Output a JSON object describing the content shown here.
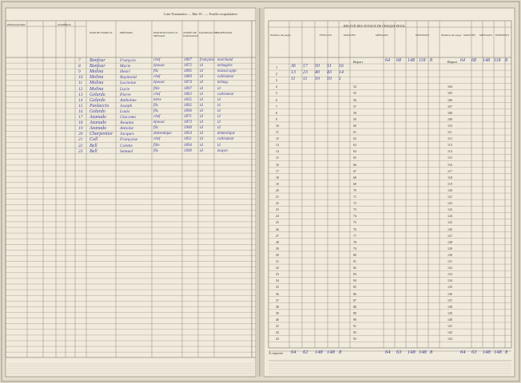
{
  "header": {
    "left_page": "Liste Nominative — Mai 19... — Feuille recapitulative",
    "right_page": "RELEVÉ DES TOTAUX DE CHAQUE FEUIL"
  },
  "left_columns": [
    "DÉSIGNATION",
    "NUMÉROS",
    "NOM DE FAMILLE",
    "PRÉNOMS",
    "POSITION DANS LE MÉNAGE",
    "ANNÉE DE NAISSANCE",
    "NATIONALITÉ",
    "PROFESSION"
  ],
  "right_columns": [
    "Numéros des pages",
    "FEUILLES",
    "MAISONS",
    "MÉNAGES",
    "INDIVIDUS",
    "Numéros des pages",
    "MAISONS",
    "MÉNAGES",
    "INDIVIDUS"
  ],
  "entries": [
    {
      "no": "7",
      "name": "Bonfour",
      "first": "François",
      "pos": "chef",
      "year": "1867",
      "nat": "française",
      "prof": "marchand"
    },
    {
      "no": "8",
      "name": "Bonfour",
      "first": "Marie",
      "pos": "épouse",
      "year": "1872",
      "nat": "id",
      "prof": "ménagère"
    },
    {
      "no": "9",
      "name": "Molina",
      "first": "Henri",
      "pos": "fils",
      "year": "1895",
      "nat": "id",
      "prof": "maison appr."
    },
    {
      "no": "10",
      "name": "Molina",
      "first": "Raymond",
      "pos": "chef",
      "year": "1869",
      "nat": "id",
      "prof": "cultivateur"
    },
    {
      "no": "11",
      "name": "Molina",
      "first": "Lucienne",
      "pos": "épouse",
      "year": "1874",
      "nat": "id",
      "prof": "ménag."
    },
    {
      "no": "12",
      "name": "Molina",
      "first": "Lucie",
      "pos": "fille",
      "year": "1897",
      "nat": "id",
      "prof": "id"
    },
    {
      "no": "13",
      "name": "Gelardo",
      "first": "Pierre",
      "pos": "chef",
      "year": "1863",
      "nat": "id",
      "prof": "cultivateur"
    },
    {
      "no": "14",
      "name": "Gelardo",
      "first": "Anthelme",
      "pos": "mère",
      "year": "1835",
      "nat": "id",
      "prof": "id"
    },
    {
      "no": "15",
      "name": "Paolaccio",
      "first": "Joseph",
      "pos": "fils",
      "year": "1892",
      "nat": "id",
      "prof": "id"
    },
    {
      "no": "16",
      "name": "Gelardo",
      "first": "Louis",
      "pos": "fils",
      "year": "1896",
      "nat": "id",
      "prof": "id"
    },
    {
      "no": "17",
      "name": "Azanado",
      "first": "Giacomo",
      "pos": "chef",
      "year": "1871",
      "nat": "id",
      "prof": "id"
    },
    {
      "no": "18",
      "name": "Azanado",
      "first": "Assunta",
      "pos": "épouse",
      "year": "1873",
      "nat": "id",
      "prof": "id"
    },
    {
      "no": "19",
      "name": "Azanado",
      "first": "Antoine",
      "pos": "fils",
      "year": "1900",
      "nat": "id",
      "prof": "id"
    },
    {
      "no": "20",
      "name": "Charpentier",
      "first": "Jacques",
      "pos": "domestique",
      "year": "1854",
      "nat": "id",
      "prof": "domestique"
    },
    {
      "no": "21",
      "name": "Coll",
      "first": "Françoise",
      "pos": "chef",
      "year": "1851",
      "nat": "id",
      "prof": "cultivateur"
    },
    {
      "no": "22",
      "name": "Bell",
      "first": "Colette",
      "pos": "fille",
      "year": "1894",
      "nat": "id",
      "prof": "id"
    },
    {
      "no": "23",
      "name": "Bell",
      "first": "Samuel",
      "pos": "fils",
      "year": "1900",
      "nat": "id",
      "prof": "maçon"
    }
  ],
  "right_rows": [
    {
      "page": "1",
      "v": [
        "36",
        "17",
        "50",
        "51",
        "16"
      ]
    },
    {
      "page": "2",
      "v": [
        "13",
        "23",
        "40",
        "43",
        "14"
      ]
    },
    {
      "page": "3",
      "v": [
        "11",
        "11",
        "10",
        "10",
        "1"
      ]
    }
  ],
  "report_row": {
    "label": "Report",
    "v": [
      "64",
      "68",
      "148",
      "118",
      "8"
    ]
  },
  "right_report": {
    "label": "Report",
    "v": [
      "64",
      "68",
      "148",
      "118",
      "8"
    ]
  },
  "totals": {
    "label": "À reporter",
    "left": [
      "64",
      "62",
      "148",
      "148",
      "8"
    ],
    "middle": [
      "64",
      "63",
      "148",
      "148",
      "8"
    ],
    "right": [
      "64",
      "63",
      "148",
      "148",
      "8"
    ]
  }
}
